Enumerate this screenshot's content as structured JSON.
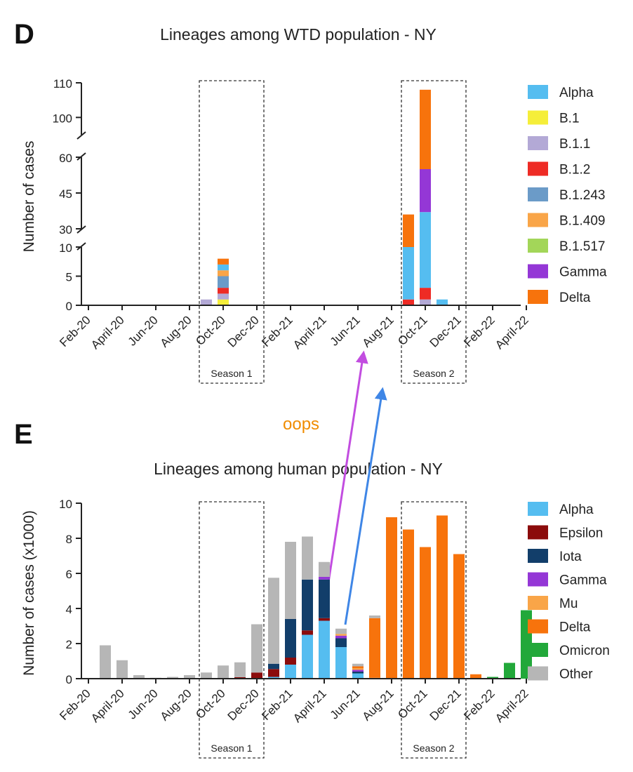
{
  "colors": {
    "Alpha": "#55bdf0",
    "B.1": "#f5ee3a",
    "B.1.1": "#b3a9d6",
    "B.1.2": "#ee2b25",
    "B.1.243": "#6b9bc8",
    "B.1.409": "#f9a548",
    "B.1.517": "#a3d659",
    "Gamma": "#9437d6",
    "Delta": "#f7730c",
    "Epsilon": "#8b0b0b",
    "Iota": "#123e6a",
    "Mu": "#f9a548",
    "Omicron": "#22a83a",
    "Other": "#b6b6b6",
    "arrow_purple": "#c24de0",
    "arrow_blue": "#3f86e6",
    "annotation": "#f08c00"
  },
  "annotation": {
    "text": "oops"
  },
  "chart_data": [
    {
      "panel_label": "D",
      "type": "bar",
      "stacked": true,
      "title": "Lineages among WTD population - NY",
      "ylabel": "Number of cases",
      "xlabel": "",
      "y_axis_breaks": [
        [
          10,
          30
        ],
        [
          60,
          95
        ]
      ],
      "y_segments": [
        [
          0,
          10
        ],
        [
          30,
          60
        ],
        [
          95,
          110
        ]
      ],
      "yticks": [
        0,
        5,
        10,
        30,
        45,
        60,
        100,
        110
      ],
      "x_tick_labels": [
        "Feb-20",
        "April-20",
        "Jun-20",
        "Aug-20",
        "Oct-20",
        "Dec-20",
        "Feb-21",
        "April-21",
        "Jun-21",
        "Aug-21",
        "Oct-21",
        "Dec-21",
        "Feb-22",
        "April-22"
      ],
      "categories": [
        "Sep-20",
        "Oct-20",
        "Sep-21",
        "Oct-21",
        "Nov-21"
      ],
      "series": [
        {
          "name": "B.1",
          "values": [
            0,
            1,
            0,
            0,
            0
          ]
        },
        {
          "name": "B.1.1",
          "values": [
            1,
            1,
            0,
            1,
            0
          ]
        },
        {
          "name": "B.1.2",
          "values": [
            0,
            1,
            1,
            2,
            0
          ]
        },
        {
          "name": "B.1.243",
          "values": [
            0,
            2,
            0,
            0,
            0
          ]
        },
        {
          "name": "B.1.409",
          "values": [
            0,
            1,
            0,
            0,
            0
          ]
        },
        {
          "name": "Alpha",
          "values": [
            0,
            1,
            9,
            34,
            1
          ]
        },
        {
          "name": "Gamma",
          "values": [
            0,
            0,
            0,
            18,
            0
          ]
        },
        {
          "name": "Delta",
          "values": [
            0,
            1,
            26,
            53,
            0
          ]
        }
      ],
      "legend": [
        "Alpha",
        "B.1",
        "B.1.1",
        "B.1.2",
        "B.1.243",
        "B.1.409",
        "B.1.517",
        "Gamma",
        "Delta"
      ],
      "seasons": [
        {
          "label": "Season 1",
          "from": "Sep-20",
          "to": "Dec-20"
        },
        {
          "label": "Season 2",
          "from": "Sep-21",
          "to": "Dec-21"
        }
      ]
    },
    {
      "panel_label": "E",
      "type": "bar",
      "stacked": true,
      "title": "Lineages among human population - NY",
      "ylabel": "Number of cases (x1000)",
      "xlabel": "",
      "ylim": [
        0,
        10
      ],
      "yticks": [
        0,
        2,
        4,
        6,
        8,
        10
      ],
      "x_tick_labels": [
        "Feb-20",
        "April-20",
        "Jun-20",
        "Aug-20",
        "Oct-20",
        "Dec-20",
        "Feb-21",
        "April-21",
        "Jun-21",
        "Aug-21",
        "Oct-21",
        "Dec-21",
        "Feb-22",
        "April-22"
      ],
      "categories": [
        "Mar-20",
        "Apr-20",
        "May-20",
        "Jun-20",
        "Jul-20",
        "Aug-20",
        "Sep-20",
        "Oct-20",
        "Nov-20",
        "Dec-20",
        "Jan-21",
        "Feb-21",
        "Mar-21",
        "Apr-21",
        "May-21",
        "Jun-21",
        "Jul-21",
        "Aug-21",
        "Sep-21",
        "Oct-21",
        "Nov-21",
        "Dec-21",
        "Jan-22",
        "Feb-22",
        "Mar-22",
        "Apr-22"
      ],
      "series": [
        {
          "name": "Alpha",
          "values": [
            0,
            0,
            0,
            0,
            0,
            0,
            0,
            0,
            0,
            0,
            0.1,
            0.8,
            2.5,
            3.3,
            1.8,
            0.3,
            0,
            0,
            0,
            0,
            0,
            0,
            0,
            0,
            0,
            0
          ]
        },
        {
          "name": "Epsilon",
          "values": [
            0,
            0,
            0,
            0,
            0,
            0,
            0,
            0,
            0.08,
            0.35,
            0.45,
            0.4,
            0.25,
            0.15,
            0,
            0,
            0,
            0,
            0,
            0,
            0,
            0,
            0,
            0,
            0,
            0
          ]
        },
        {
          "name": "Iota",
          "values": [
            0,
            0,
            0,
            0,
            0,
            0,
            0,
            0,
            0,
            0,
            0.3,
            2.2,
            2.9,
            2.2,
            0.5,
            0.1,
            0,
            0,
            0,
            0,
            0,
            0,
            0,
            0,
            0,
            0
          ]
        },
        {
          "name": "Gamma",
          "values": [
            0,
            0,
            0,
            0,
            0,
            0,
            0,
            0,
            0,
            0,
            0,
            0,
            0,
            0.15,
            0.15,
            0.1,
            0,
            0,
            0,
            0,
            0,
            0,
            0,
            0,
            0,
            0
          ]
        },
        {
          "name": "Mu",
          "values": [
            0,
            0,
            0,
            0,
            0,
            0,
            0,
            0,
            0,
            0,
            0,
            0,
            0,
            0,
            0.1,
            0.1,
            0.05,
            0,
            0,
            0,
            0,
            0,
            0,
            0,
            0,
            0
          ]
        },
        {
          "name": "Delta",
          "values": [
            0,
            0,
            0,
            0,
            0,
            0,
            0,
            0,
            0,
            0,
            0,
            0,
            0,
            0,
            0,
            0.1,
            3.4,
            9.2,
            8.5,
            7.5,
            9.3,
            7.1,
            0.25,
            0,
            0,
            0
          ]
        },
        {
          "name": "Omicron",
          "values": [
            0,
            0,
            0,
            0,
            0,
            0,
            0,
            0,
            0,
            0,
            0,
            0,
            0,
            0,
            0,
            0,
            0,
            0,
            0,
            0,
            0,
            0,
            0,
            0.1,
            0.9,
            3.9
          ]
        },
        {
          "name": "Other",
          "values": [
            1.9,
            1.05,
            0.2,
            0.05,
            0.1,
            0.2,
            0.35,
            0.75,
            0.85,
            2.75,
            4.9,
            4.4,
            2.45,
            0.85,
            0.3,
            0.15,
            0.15,
            0,
            0,
            0,
            0,
            0,
            0,
            0,
            0,
            0
          ]
        }
      ],
      "legend": [
        "Alpha",
        "Epsilon",
        "Iota",
        "Gamma",
        "Mu",
        "Delta",
        "Omicron",
        "Other"
      ],
      "seasons": [
        {
          "label": "Season 1",
          "from": "Sep-20",
          "to": "Dec-20"
        },
        {
          "label": "Season 2",
          "from": "Sep-21",
          "to": "Dec-21"
        }
      ]
    }
  ]
}
